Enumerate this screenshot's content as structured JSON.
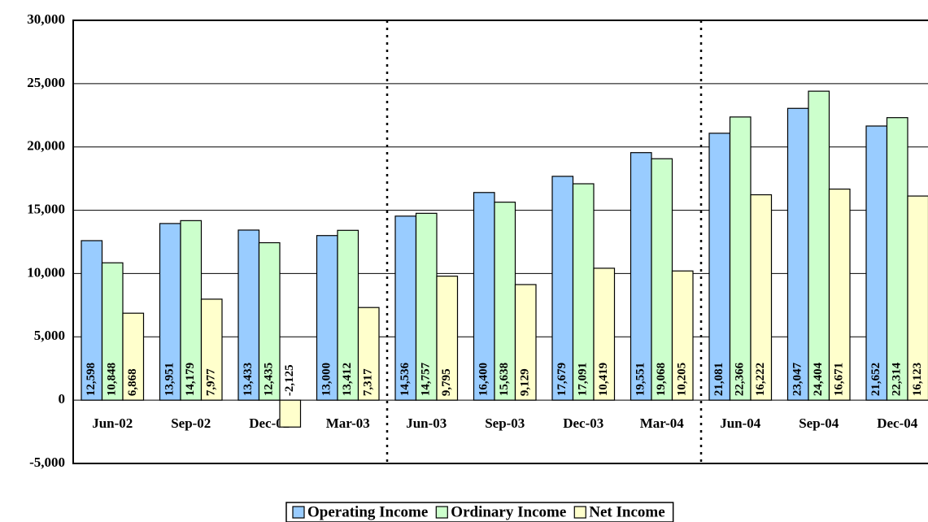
{
  "chart_data": {
    "type": "bar",
    "categories": [
      "Jun-02",
      "Sep-02",
      "Dec-02",
      "Mar-03",
      "Jun-03",
      "Sep-03",
      "Dec-03",
      "Mar-04",
      "Jun-04",
      "Sep-04",
      "Dec-04"
    ],
    "series": [
      {
        "name": "Operating Income",
        "color": "#99ccff",
        "values": [
          12598,
          13951,
          13433,
          13000,
          14536,
          16400,
          17679,
          19551,
          21081,
          23047,
          21652
        ],
        "value_labels": [
          "12,598",
          "13,951",
          "13,433",
          "13,000",
          "14,536",
          "16,400",
          "17,679",
          "19,551",
          "21,081",
          "23,047",
          "21,652"
        ]
      },
      {
        "name": "Ordinary Income",
        "color": "#ccffcc",
        "values": [
          10848,
          14179,
          12435,
          13412,
          14757,
          15638,
          17091,
          19068,
          22366,
          24404,
          22314
        ],
        "value_labels": [
          "10,848",
          "14,179",
          "12,435",
          "13,412",
          "14,757",
          "15,638",
          "17,091",
          "19,068",
          "22,366",
          "24,404",
          "22,314"
        ]
      },
      {
        "name": "Net Income",
        "color": "#ffffcc",
        "values": [
          6868,
          7977,
          -2125,
          7317,
          9795,
          9129,
          10419,
          10205,
          16222,
          16671,
          16123
        ],
        "value_labels": [
          "6,868",
          "7,977",
          "-2,125",
          "7,317",
          "9,795",
          "9,129",
          "10,419",
          "10,205",
          "16,222",
          "16,671",
          "16,123"
        ]
      }
    ],
    "ylim": [
      -5000,
      30000
    ],
    "yticks": [
      {
        "value": -5000,
        "label": "-5,000"
      },
      0,
      {
        "value": 5000,
        "label": "5,000"
      },
      {
        "value": 10000,
        "label": "10,000"
      },
      {
        "value": 15000,
        "label": "15,000"
      },
      {
        "value": 20000,
        "label": "20,000"
      },
      {
        "value": 25000,
        "label": "25,000"
      },
      {
        "value": 30000,
        "label": "30,000"
      }
    ],
    "grid": true,
    "legend": "bottom"
  }
}
